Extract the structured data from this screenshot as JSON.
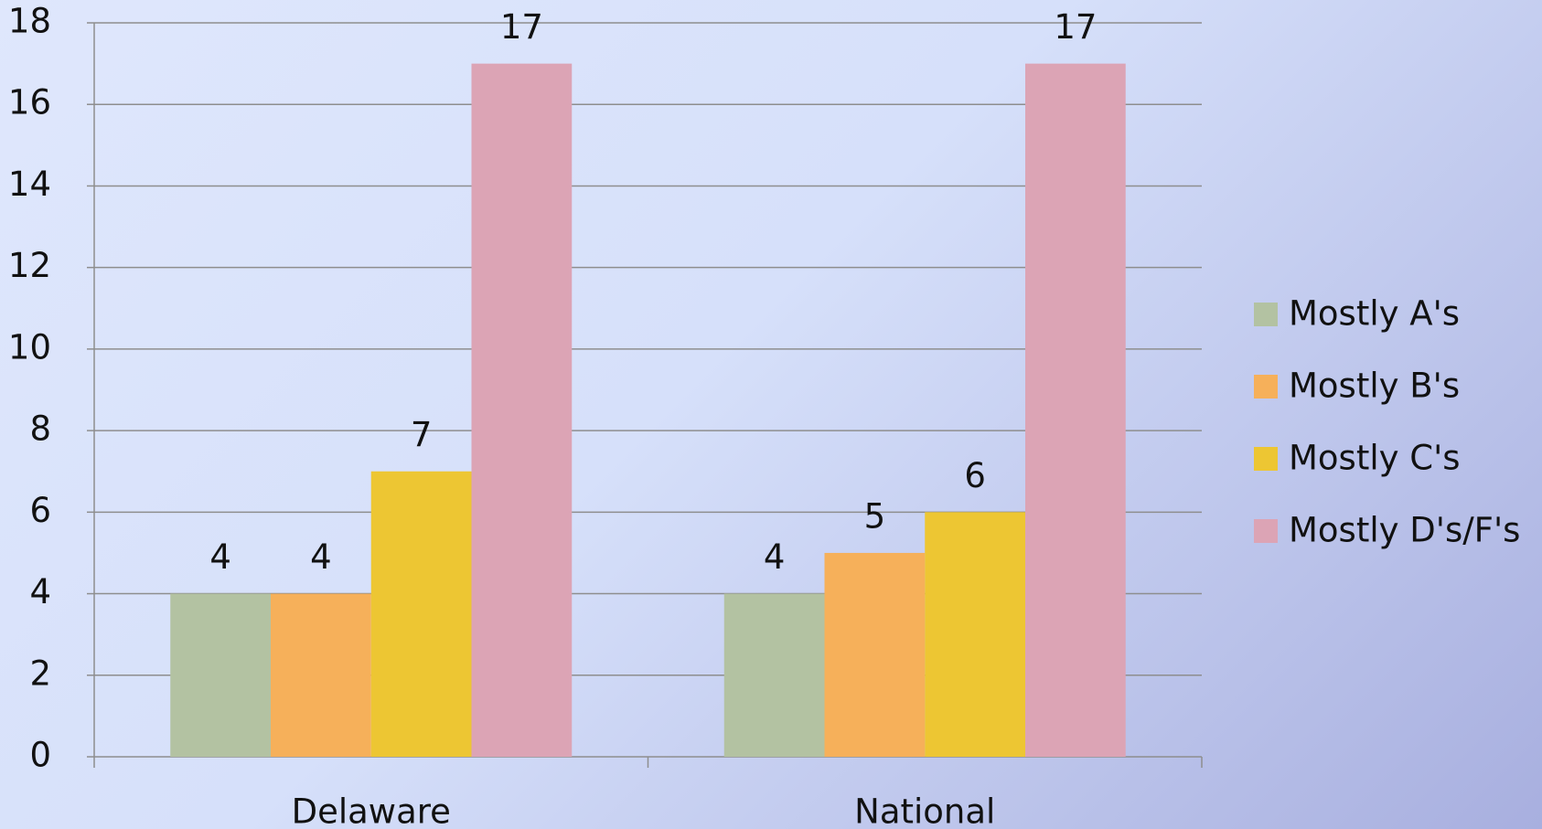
{
  "chart_data": {
    "type": "bar",
    "categories": [
      "Delaware",
      "National"
    ],
    "series": [
      {
        "name": "Mostly A's",
        "color": "#b3c2a2",
        "values": [
          4,
          4
        ]
      },
      {
        "name": "Mostly B's",
        "color": "#f6b05a",
        "values": [
          4,
          5
        ]
      },
      {
        "name": "Mostly C's",
        "color": "#edc633",
        "values": [
          7,
          6
        ]
      },
      {
        "name": "Mostly D's/F's",
        "color": "#dca4b5",
        "values": [
          17,
          17
        ]
      }
    ],
    "ylim": [
      0,
      18
    ],
    "yticks": [
      0,
      2,
      4,
      6,
      8,
      10,
      12,
      14,
      16,
      18
    ],
    "grid": true,
    "legend": "right"
  }
}
